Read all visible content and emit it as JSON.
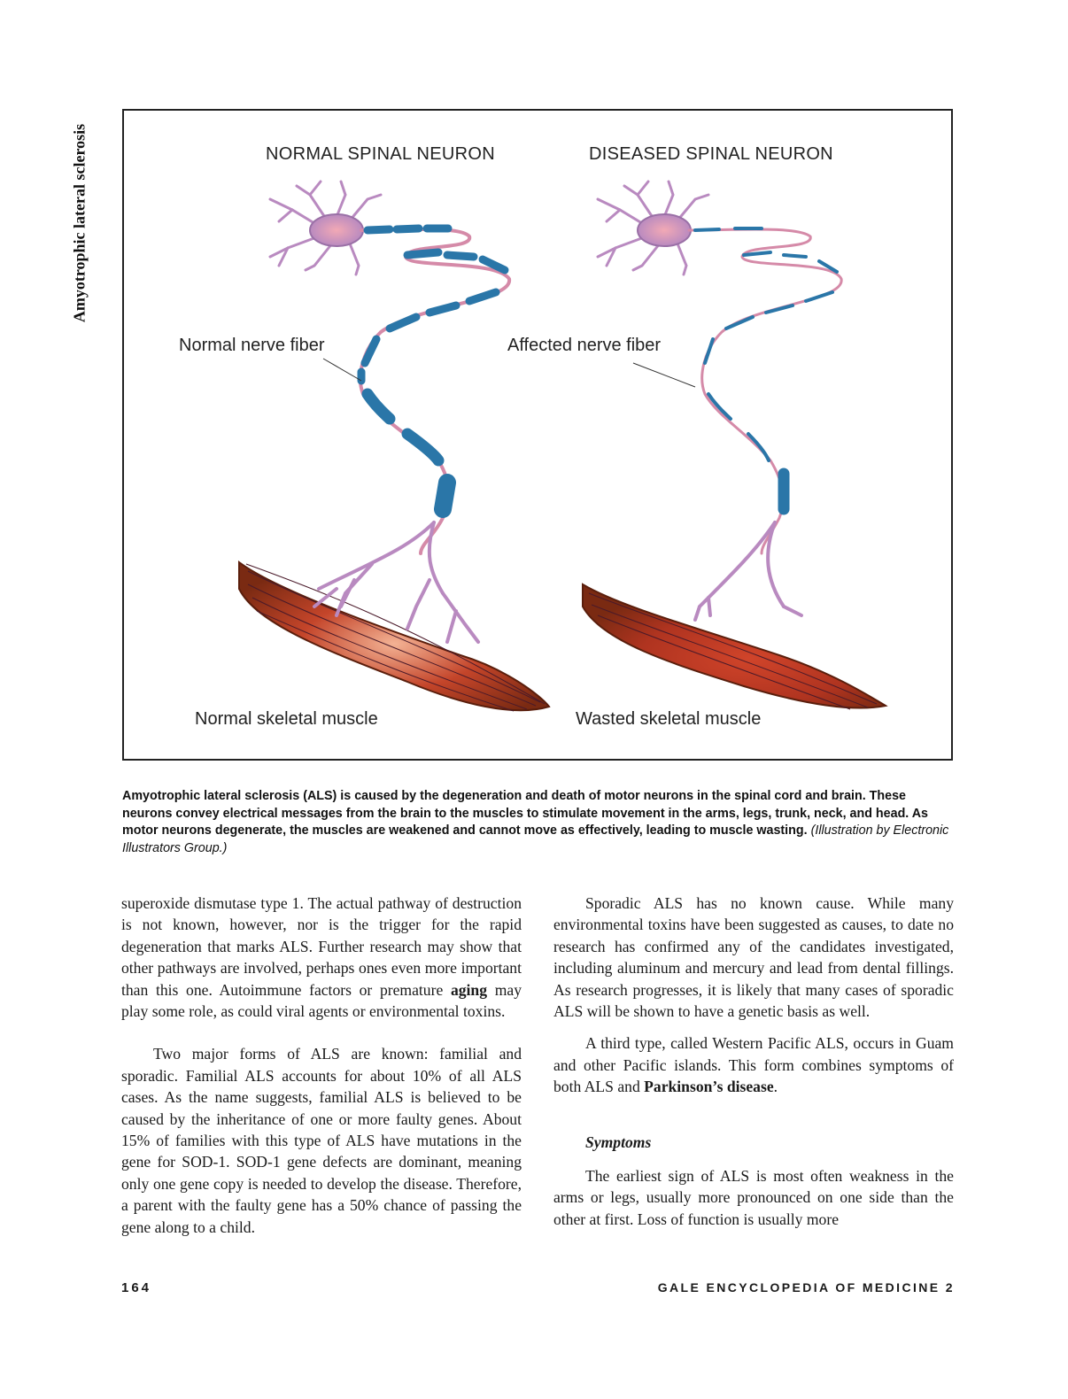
{
  "running_side_title": "Amyotrophic lateral sclerosis",
  "figure": {
    "left_heading": "NORMAL SPINAL NEURON",
    "right_heading": "DISEASED SPINAL NEURON",
    "left_fiber_label": "Normal nerve fiber",
    "right_fiber_label": "Affected nerve fiber",
    "left_muscle_label": "Normal skeletal muscle",
    "right_muscle_label": "Wasted skeletal muscle",
    "colors": {
      "myelin": "#2a76a8",
      "node": "#d58aa8",
      "neuron_body": "#c495c6",
      "muscle": "#b83a1e",
      "muscle_highlight": "#f0a080"
    }
  },
  "caption": {
    "bold_text": "Amyotrophic lateral sclerosis (ALS) is caused by the degeneration and death of motor neurons in the spinal cord and brain. These neurons convey electrical messages from the brain to the muscles to stimulate movement in the arms, legs, trunk, neck, and head. As motor neurons degenerate, the muscles are weakened and cannot move as effectively, leading to muscle wasting.",
    "credit": "(Illustration by Electronic Illustrators Group.)"
  },
  "left_column": {
    "p1_a": "superoxide dismutase type 1. The actual pathway of destruction is not known, however, nor is the trigger for the rapid degeneration that marks ALS. Further research may show that other pathways are involved, perhaps ones even more important than this one. Autoimmune factors or premature ",
    "p1_bold": "aging",
    "p1_b": " may play some role, as could viral agents or environmental toxins.",
    "p2": "Two major forms of ALS are known: familial and sporadic. Familial ALS accounts for about 10% of all ALS cases. As the name suggests, familial ALS is believed to be caused by the inheritance of one or more faulty genes. About 15% of families with this type of ALS have mutations in the gene for SOD-1. SOD-1 gene defects are dominant, meaning only one gene copy is needed to develop the disease. Therefore, a parent with the faulty gene has a 50% chance of passing the gene along to a child."
  },
  "right_column": {
    "p1": "Sporadic ALS has no known cause. While many environmental toxins have been suggested as causes, to date no research has confirmed any of the candidates investigated, including aluminum and mercury and lead from dental fillings. As research progresses, it is likely that many cases of sporadic ALS will be shown to have a genetic basis as well.",
    "p2_a": "A third type, called Western Pacific ALS, occurs in Guam and other Pacific islands. This form combines symptoms of both ALS and ",
    "p2_bold": "Parkinson’s disease",
    "p2_b": ".",
    "subhead": "Symptoms",
    "p3": "The earliest sign of ALS is most often weakness in the arms or legs, usually more pronounced on one side than the other at first. Loss of function is usually more"
  },
  "footer": {
    "page_number": "164",
    "publication": "GALE ENCYCLOPEDIA OF MEDICINE 2"
  }
}
